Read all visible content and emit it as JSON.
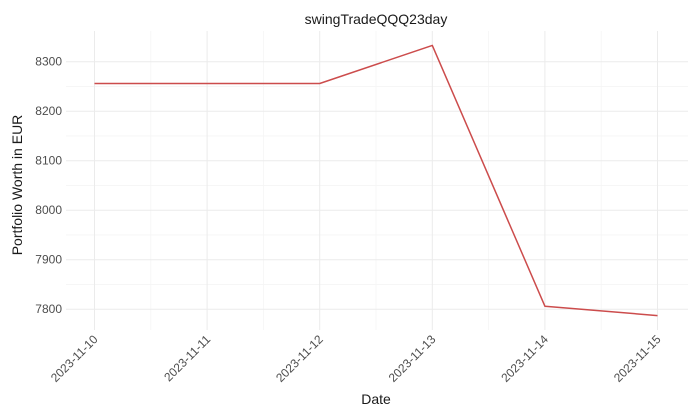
{
  "chart_data": {
    "type": "line",
    "title": "swingTradeQQQ23day",
    "xlabel": "Date",
    "ylabel": "Portfolio Worth in EUR",
    "x": [
      "2023-11-10",
      "2023-11-11",
      "2023-11-12",
      "2023-11-13",
      "2023-11-14",
      "2023-11-15"
    ],
    "series": [
      {
        "values": [
          8256,
          8256,
          8256,
          8333,
          7806,
          7787
        ],
        "color": "#cc4c4c"
      }
    ],
    "yticks": [
      7800,
      7900,
      8000,
      8100,
      8200,
      8300
    ],
    "ylim": [
      7758,
      8362
    ],
    "grid": true,
    "background": "#ffffff"
  }
}
